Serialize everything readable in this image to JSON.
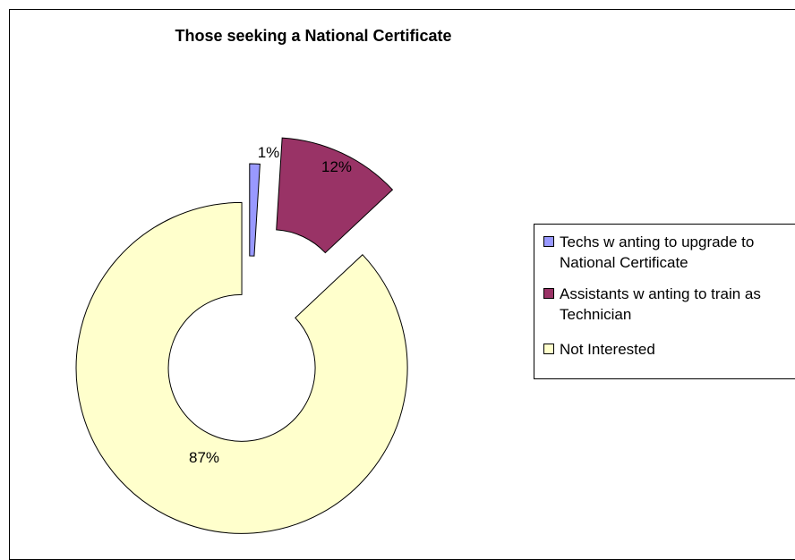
{
  "chart_data": {
    "type": "pie",
    "variant": "exploded doughnut",
    "title": "Those seeking a National Certificate",
    "categories": [
      "Techs w anting to upgrade to National Certificate",
      "Assistants w anting to train as Technician",
      "Not Interested"
    ],
    "values": [
      1,
      12,
      87
    ],
    "data_labels": [
      "1%",
      "12%",
      "87%"
    ],
    "colors": [
      "#9999ff",
      "#993366",
      "#ffffcc"
    ],
    "legend_position": "right"
  }
}
